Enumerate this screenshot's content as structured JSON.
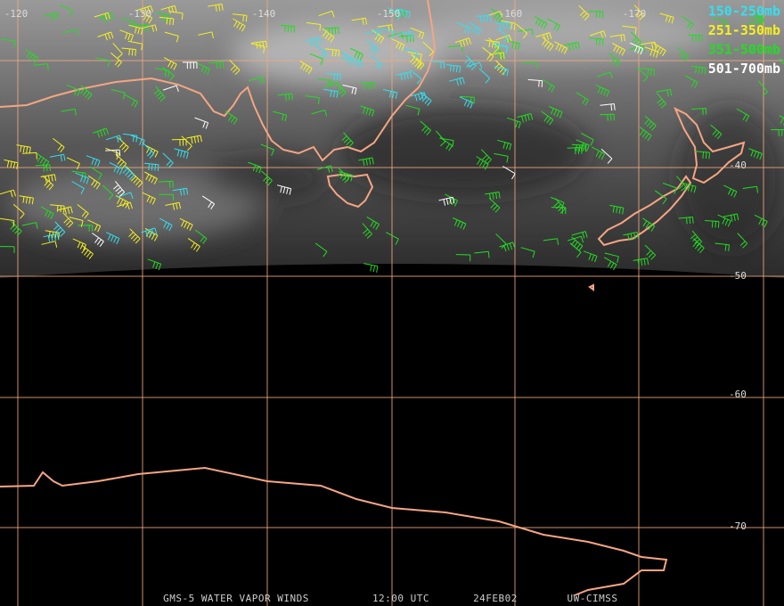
{
  "map": {
    "longitude_labels": [
      "-120",
      "-130",
      "-140",
      "-150",
      "-160",
      "-170"
    ],
    "latitude_labels": [
      "-40",
      "-50",
      "-60",
      "-70"
    ],
    "legend": [
      {
        "label": "150-250mb",
        "color": "#33e0f0"
      },
      {
        "label": "251-350mb",
        "color": "#f5f020"
      },
      {
        "label": "351-500mb",
        "color": "#22dd22"
      },
      {
        "label": "501-700mb",
        "color": "#ffffff"
      }
    ],
    "footer": [
      "GMS-5 WATER VAPOR WINDS",
      "12:00 UTC",
      "24FEB02",
      "UW-CIMSS"
    ]
  }
}
